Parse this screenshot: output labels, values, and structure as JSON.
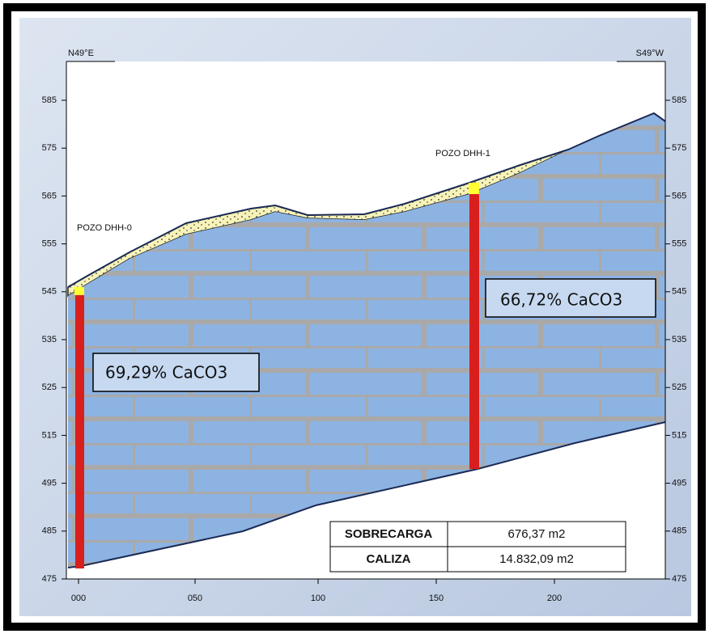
{
  "headers": {
    "left": "N49°E",
    "right": "S49°W"
  },
  "wells": [
    {
      "label": "POZO DHH-0",
      "caco3": "69,29% CaCO3"
    },
    {
      "label": "POZO DHH-1",
      "caco3": "66,72% CaCO3"
    }
  ],
  "table": {
    "rows": [
      [
        "SOBRECARGA",
        "676,37 m2"
      ],
      [
        "CALIZA",
        "14.832,09 m2"
      ]
    ]
  },
  "axes": {
    "y_ticks": [
      "585",
      "575",
      "565",
      "555",
      "545",
      "535",
      "525",
      "515",
      "495",
      "485",
      "475"
    ],
    "x_ticks": [
      "000",
      "050",
      "100",
      "150",
      "200"
    ]
  }
}
